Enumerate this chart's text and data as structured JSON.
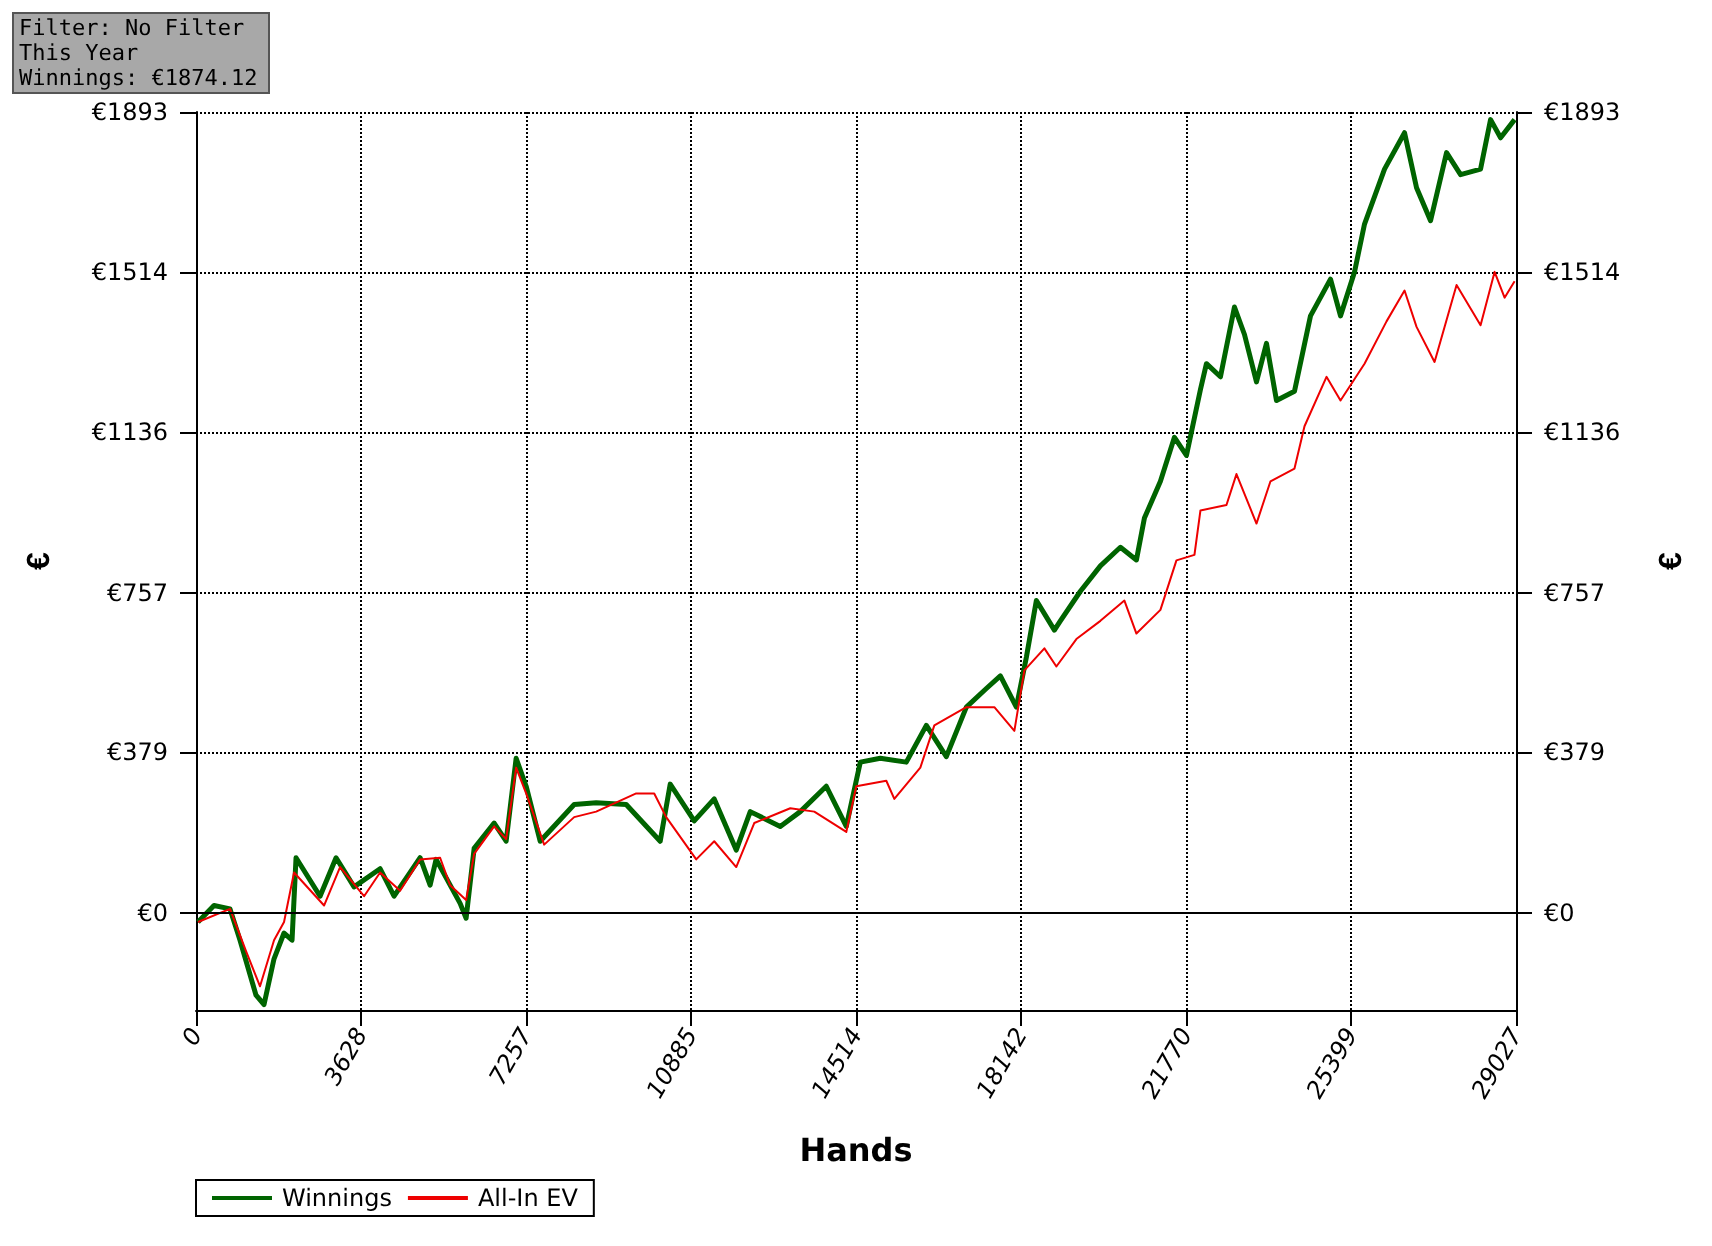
{
  "chart_data": {
    "type": "line",
    "xlabel": "Hands",
    "ylabel": "€",
    "y2label": "€",
    "xlim": [
      0,
      29027
    ],
    "xticks": [
      0,
      3628,
      7257,
      10885,
      14514,
      18142,
      21770,
      25399,
      29027
    ],
    "ylim": [
      -230,
      1893
    ],
    "yticks": [
      {
        "value": 0,
        "label": "€0"
      },
      {
        "value": 379,
        "label": "€379"
      },
      {
        "value": 757,
        "label": "€757"
      },
      {
        "value": 1136,
        "label": "€1136"
      },
      {
        "value": 1514,
        "label": "€1514"
      },
      {
        "value": 1893,
        "label": "€1893"
      }
    ],
    "y2lim": [
      -230,
      1893
    ],
    "y2ticks": [
      {
        "value": 0,
        "label": "€0"
      },
      {
        "value": 379,
        "label": "€379"
      },
      {
        "value": 757,
        "label": "€757"
      },
      {
        "value": 1136,
        "label": "€1136"
      },
      {
        "value": 1514,
        "label": "€1514"
      },
      {
        "value": 1893,
        "label": "€1893"
      }
    ],
    "grid": true,
    "legend": "bottom left",
    "marker": "none",
    "ref_lines": [
      {
        "axis": "y",
        "value": 0,
        "color": "#000000"
      }
    ],
    "annotations": [
      "Filter: No Filter",
      "This Year",
      "Winnings: €1874.12"
    ],
    "series": [
      {
        "name": "Winnings",
        "color": "#006400",
        "x": [
          44,
          396,
          748,
          968,
          1320,
          1496,
          1716,
          1936,
          2112,
          2200,
          2728,
          3080,
          3476,
          4048,
          4356,
          4928,
          5148,
          5280,
          5808,
          5940,
          6116,
          6556,
          6820,
          7040,
          7260,
          7568,
          8316,
          8800,
          9460,
          10208,
          10428,
          10956,
          11396,
          11880,
          12188,
          12848,
          13288,
          13860,
          14300,
          14608,
          15048,
          15620,
          16060,
          16500,
          16940,
          17380,
          17688,
          18040,
          18260,
          18480,
          18876,
          19008,
          19448,
          19888,
          20328,
          20680,
          20856,
          21208,
          21516,
          21780,
          22088,
          22220,
          22528,
          22836,
          23056,
          23320,
          23540,
          23760,
          24156,
          24508,
          24948,
          25168,
          25476,
          25696,
          26136,
          26576,
          26840,
          27148,
          27500,
          27808,
          28248,
          28468,
          28688,
          28996
        ],
        "values": [
          -22,
          17,
          9,
          -65,
          -195,
          -217,
          -109,
          -48,
          -65,
          130,
          39,
          130,
          61,
          104,
          39,
          130,
          65,
          126,
          22,
          -13,
          152,
          212,
          169,
          365,
          299,
          169,
          256,
          260,
          256,
          169,
          304,
          217,
          269,
          148,
          239,
          204,
          239,
          299,
          204,
          356,
          365,
          356,
          443,
          369,
          486,
          530,
          560,
          486,
          604,
          738,
          668,
          690,
          760,
          820,
          864,
          834,
          933,
          1020,
          1124,
          1081,
          1237,
          1298,
          1267,
          1432,
          1367,
          1255,
          1346,
          1211,
          1233,
          1411,
          1498,
          1411,
          1515,
          1628,
          1758,
          1844,
          1714,
          1636,
          1797,
          1745,
          1758,
          1875,
          1832,
          1875
        ]
      },
      {
        "name": "All-In EV",
        "color": "#ee0000",
        "x": [
          44,
          748,
          1100,
          1408,
          1716,
          1936,
          2156,
          2816,
          3168,
          3696,
          4048,
          4488,
          4928,
          5368,
          5588,
          5940,
          6116,
          6556,
          6820,
          7040,
          7260,
          7656,
          8316,
          8800,
          9680,
          10076,
          10340,
          11000,
          11396,
          11880,
          12276,
          13068,
          13596,
          14300,
          14520,
          15180,
          15356,
          15928,
          16236,
          16940,
          17556,
          17996,
          18216,
          18656,
          18920,
          19360,
          19888,
          20416,
          20680,
          21208,
          21560,
          21956,
          22088,
          22660,
          22880,
          23320,
          23628,
          24156,
          24376,
          24860,
          25168,
          25696,
          26180,
          26576,
          26840,
          27236,
          27720,
          28248,
          28556,
          28776,
          28996
        ],
        "values": [
          -22,
          9,
          -91,
          -174,
          -65,
          -22,
          95,
          17,
          108,
          39,
          95,
          52,
          126,
          130,
          65,
          30,
          139,
          204,
          174,
          343,
          282,
          161,
          226,
          239,
          282,
          282,
          226,
          126,
          169,
          108,
          212,
          247,
          239,
          191,
          299,
          312,
          269,
          343,
          443,
          486,
          486,
          430,
          573,
          625,
          582,
          647,
          690,
          738,
          660,
          716,
          833,
          846,
          951,
          964,
          1037,
          920,
          1020,
          1050,
          1150,
          1267,
          1211,
          1298,
          1398,
          1471,
          1385,
          1302,
          1484,
          1389,
          1515,
          1454,
          1493
        ]
      }
    ]
  }
}
